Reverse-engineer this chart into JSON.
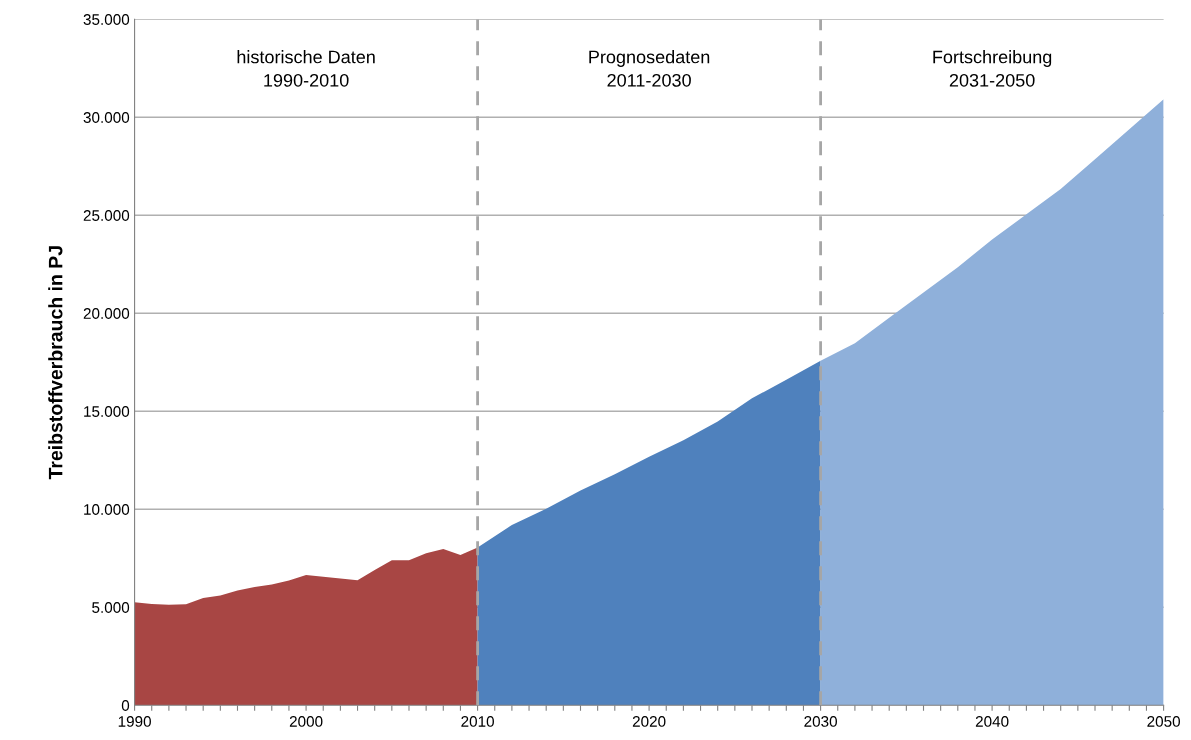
{
  "chart_data": {
    "type": "area",
    "ylabel": "Treibstoffverbrauch in PJ",
    "annotations": [
      "historische Daten\n1990-2010",
      "Prognosedaten\n2011-2030",
      "Fortschreibung\n2031-2050"
    ],
    "series": [
      {
        "color": "#a84644",
        "x": [
          1990,
          1991,
          1992,
          1993,
          1994,
          1995,
          1996,
          1997,
          1998,
          1999,
          2000,
          2001,
          2002,
          2003,
          2004,
          2005,
          2006,
          2007,
          2008,
          2009,
          2010
        ],
        "values": [
          5260,
          5160,
          5120,
          5150,
          5470,
          5600,
          5850,
          6030,
          6160,
          6360,
          6640,
          6550,
          6470,
          6380,
          6900,
          7400,
          7400,
          7760,
          7970,
          7660,
          8050
        ]
      },
      {
        "color": "#4f81bd",
        "x": [
          2010,
          2012,
          2014,
          2016,
          2018,
          2020,
          2022,
          2024,
          2026,
          2028,
          2030
        ],
        "values": [
          8050,
          9200,
          10020,
          10960,
          11780,
          12680,
          13520,
          14480,
          15660,
          16600,
          17580
        ]
      },
      {
        "color": "#8fb0da",
        "x": [
          2030,
          2032,
          2034,
          2036,
          2038,
          2040,
          2042,
          2044,
          2046,
          2048,
          2050
        ],
        "values": [
          17580,
          18470,
          19770,
          21060,
          22350,
          23760,
          25050,
          26340,
          27860,
          29390,
          30920
        ]
      }
    ],
    "xlim": [
      1990,
      2050
    ],
    "xticks": [
      1990,
      {
        "value": 1991,
        "label": null
      },
      {
        "value": 1992,
        "label": null
      },
      {
        "value": 1993,
        "label": null
      },
      {
        "value": 1994,
        "label": null
      },
      {
        "value": 1995,
        "label": null
      },
      {
        "value": 1996,
        "label": null
      },
      {
        "value": 1997,
        "label": null
      },
      {
        "value": 1998,
        "label": null
      },
      {
        "value": 1999,
        "label": null
      },
      2000,
      {
        "value": 2001,
        "label": null
      },
      {
        "value": 2002,
        "label": null
      },
      {
        "value": 2003,
        "label": null
      },
      {
        "value": 2004,
        "label": null
      },
      {
        "value": 2005,
        "label": null
      },
      {
        "value": 2006,
        "label": null
      },
      {
        "value": 2007,
        "label": null
      },
      {
        "value": 2008,
        "label": null
      },
      {
        "value": 2009,
        "label": null
      },
      2010,
      {
        "value": 2011,
        "label": null
      },
      {
        "value": 2012,
        "label": null
      },
      {
        "value": 2013,
        "label": null
      },
      {
        "value": 2014,
        "label": null
      },
      {
        "value": 2015,
        "label": null
      },
      {
        "value": 2016,
        "label": null
      },
      {
        "value": 2017,
        "label": null
      },
      {
        "value": 2018,
        "label": null
      },
      {
        "value": 2019,
        "label": null
      },
      2020,
      {
        "value": 2021,
        "label": null
      },
      {
        "value": 2022,
        "label": null
      },
      {
        "value": 2023,
        "label": null
      },
      {
        "value": 2024,
        "label": null
      },
      {
        "value": 2025,
        "label": null
      },
      {
        "value": 2026,
        "label": null
      },
      {
        "value": 2027,
        "label": null
      },
      {
        "value": 2028,
        "label": null
      },
      {
        "value": 2029,
        "label": null
      },
      2030,
      {
        "value": 2031,
        "label": null
      },
      {
        "value": 2032,
        "label": null
      },
      {
        "value": 2033,
        "label": null
      },
      {
        "value": 2034,
        "label": null
      },
      {
        "value": 2035,
        "label": null
      },
      {
        "value": 2036,
        "label": null
      },
      {
        "value": 2037,
        "label": null
      },
      {
        "value": 2038,
        "label": null
      },
      {
        "value": 2039,
        "label": null
      },
      2040,
      {
        "value": 2041,
        "label": null
      },
      {
        "value": 2042,
        "label": null
      },
      {
        "value": 2043,
        "label": null
      },
      {
        "value": 2044,
        "label": null
      },
      {
        "value": 2045,
        "label": null
      },
      {
        "value": 2046,
        "label": null
      },
      {
        "value": 2047,
        "label": null
      },
      {
        "value": 2048,
        "label": null
      },
      {
        "value": 2049,
        "label": null
      },
      2050
    ],
    "ylim": [
      0,
      35000
    ],
    "yticks": [
      {
        "value": 0,
        "label": "0"
      },
      {
        "value": 5000,
        "label": "5.000"
      },
      {
        "value": 10000,
        "label": "10.000"
      },
      {
        "value": 15000,
        "label": "15.000"
      },
      {
        "value": 20000,
        "label": "20.000"
      },
      {
        "value": 25000,
        "label": "25.000"
      },
      {
        "value": 30000,
        "label": "30.000"
      },
      {
        "value": 35000,
        "label": "35.000"
      }
    ],
    "grid": "y",
    "ref_lines": [
      {
        "axis": "x",
        "value": 2010,
        "color": "#a6a6a6",
        "line_style": "dashed"
      },
      {
        "axis": "x",
        "value": 2030,
        "color": "#a6a6a6",
        "line_style": "dashed"
      }
    ]
  }
}
